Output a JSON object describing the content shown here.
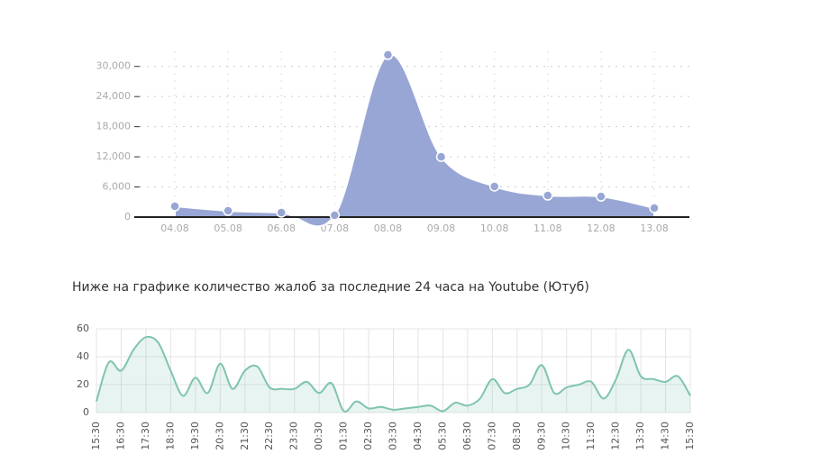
{
  "chart_data": [
    {
      "type": "area",
      "categories": [
        "04.08",
        "05.08",
        "06.08",
        "07.08",
        "08.08",
        "09.08",
        "10.08",
        "11.08",
        "12.08",
        "13.08"
      ],
      "values": [
        2150,
        1250,
        900,
        360,
        32300,
        12000,
        6100,
        4300,
        4100,
        1800
      ],
      "color": "#97a6d4",
      "ylim": [
        0,
        33000
      ],
      "yticks": [
        0,
        {
          "value": 6000,
          "label": "6,000"
        },
        {
          "value": 12000,
          "label": "12,000"
        },
        {
          "value": 18000,
          "label": "18,000"
        },
        {
          "value": 24000,
          "label": "24,000"
        },
        {
          "value": 30000,
          "label": "30,000"
        }
      ],
      "grid": true
    },
    {
      "type": "line",
      "title": "Ниже на графике количество жалоб за последние 24 часа на Youtube (Ютуб)",
      "categories": [
        "15:30",
        null,
        "16:30",
        null,
        "17:30",
        null,
        "18:30",
        null,
        "19:30",
        null,
        "20:30",
        null,
        "21:30",
        null,
        "22:30",
        null,
        "23:30",
        null,
        "00:30",
        null,
        "01:30",
        null,
        "02:30",
        null,
        "03:30",
        null,
        "04:30",
        null,
        "05:30",
        null,
        "06:30",
        null,
        "07:30",
        null,
        "08:30",
        null,
        "09:30",
        null,
        "10:30",
        null,
        "11:30",
        null,
        "12:30",
        null,
        "13:30",
        null,
        "14:30",
        null,
        "15:30"
      ],
      "values": [
        8,
        36,
        30,
        45,
        54,
        50,
        30,
        12,
        25,
        14,
        35,
        17,
        30,
        33,
        18,
        17,
        17,
        22,
        14,
        21,
        1,
        8,
        3,
        4,
        2,
        3,
        4,
        5,
        1,
        7,
        5,
        10,
        24,
        14,
        17,
        20,
        34,
        14,
        18,
        20,
        22,
        10,
        24,
        45,
        26,
        24,
        22,
        26,
        12
      ],
      "color": "#7fc4b0",
      "ylim": [
        0,
        60
      ],
      "yticks": [
        0,
        20,
        40,
        60
      ],
      "grid": true
    }
  ]
}
